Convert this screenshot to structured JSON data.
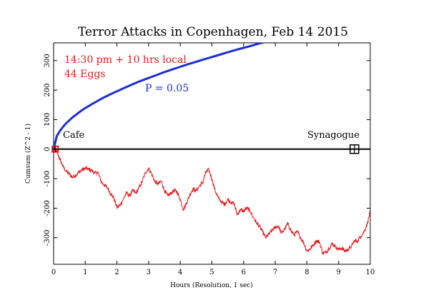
{
  "colors": {
    "cumsum": "#e31a1c",
    "probability": "#1c2fd6",
    "axis": "#000000",
    "marker": "#000000"
  },
  "chart_data": {
    "type": "line",
    "title": "Terror Attacks in Copenhagen, Feb 14 2015",
    "xlabel": "Hours (Resolution, 1 sec)",
    "ylabel": "Cumsum (Z^2 - 1)",
    "xlim": [
      0,
      10
    ],
    "ylim": [
      -390,
      360
    ],
    "x_ticks": [
      "0",
      "1",
      "2",
      "3",
      "4",
      "5",
      "6",
      "7",
      "8",
      "9",
      "10"
    ],
    "y_ticks": [
      "-300",
      "-200",
      "-100",
      "0",
      "100",
      "200",
      "300"
    ],
    "grid": false,
    "annotations": {
      "time_note": "14:30 pm + 10 hrs local",
      "eggs_note": "44 Eggs",
      "prob_label": "P = 0.05",
      "event1_label": "Cafe",
      "event2_label": "Synagogue"
    },
    "events": [
      {
        "name": "Cafe",
        "x": 0.05,
        "y": 0
      },
      {
        "name": "Synagogue",
        "x": 9.5,
        "y": 0
      }
    ],
    "series": [
      {
        "color": "#e31a1c",
        "x": [
          0,
          0.1,
          0.2,
          0.3,
          0.4,
          0.5,
          0.6,
          0.7,
          0.8,
          0.9,
          1.0,
          1.1,
          1.2,
          1.3,
          1.4,
          1.5,
          1.6,
          1.7,
          1.8,
          1.9,
          2.0,
          2.1,
          2.2,
          2.3,
          2.4,
          2.5,
          2.6,
          2.7,
          2.8,
          2.9,
          3.0,
          3.1,
          3.2,
          3.3,
          3.4,
          3.5,
          3.6,
          3.7,
          3.8,
          3.9,
          4.0,
          4.1,
          4.2,
          4.3,
          4.4,
          4.5,
          4.6,
          4.7,
          4.8,
          4.9,
          5.0,
          5.1,
          5.2,
          5.3,
          5.4,
          5.5,
          5.6,
          5.7,
          5.8,
          5.9,
          6.0,
          6.1,
          6.2,
          6.3,
          6.4,
          6.5,
          6.6,
          6.7,
          6.8,
          6.9,
          7.0,
          7.1,
          7.2,
          7.3,
          7.4,
          7.5,
          7.6,
          7.7,
          7.8,
          7.9,
          8.0,
          8.1,
          8.2,
          8.3,
          8.4,
          8.5,
          8.6,
          8.7,
          8.8,
          8.9,
          9.0,
          9.1,
          9.2,
          9.3,
          9.4,
          9.5,
          9.6,
          9.7,
          9.8,
          9.9,
          10.0
        ],
        "values": [
          0,
          -8,
          -35,
          -60,
          -75,
          -85,
          -95,
          -88,
          -78,
          -70,
          -65,
          -68,
          -72,
          -82,
          -78,
          -110,
          -122,
          -130,
          -150,
          -165,
          -198,
          -190,
          -170,
          -148,
          -158,
          -140,
          -150,
          -130,
          -110,
          -80,
          -65,
          -85,
          -110,
          -118,
          -108,
          -140,
          -158,
          -150,
          -140,
          -145,
          -170,
          -205,
          -182,
          -155,
          -135,
          -142,
          -125,
          -115,
          -80,
          -70,
          -100,
          -140,
          -165,
          -178,
          -188,
          -170,
          -180,
          -185,
          -222,
          -205,
          -210,
          -200,
          -208,
          -230,
          -248,
          -262,
          -280,
          -300,
          -288,
          -275,
          -265,
          -260,
          -285,
          -270,
          -252,
          -278,
          -290,
          -280,
          -300,
          -318,
          -345,
          -338,
          -325,
          -310,
          -315,
          -352,
          -350,
          -335,
          -320,
          -330,
          -340,
          -335,
          -345,
          -340,
          -330,
          -310,
          -312,
          -295,
          -280,
          -255,
          -210
        ]
      },
      {
        "color": "#1c2fd6",
        "x": [
          0,
          0.1,
          0.2,
          0.3,
          0.4,
          0.5,
          0.6,
          0.7,
          0.8,
          0.9,
          1.0,
          1.2,
          1.4,
          1.6,
          1.8,
          2.0,
          2.25,
          2.5,
          2.75,
          3.0,
          3.25,
          3.5,
          3.75,
          4.0,
          4.25,
          4.5,
          4.75,
          5.0,
          5.25,
          5.5,
          5.75,
          6.0,
          6.25,
          6.5,
          6.75,
          7.0
        ],
        "values": [
          0,
          44,
          62,
          76,
          88,
          98,
          108,
          116,
          124,
          132,
          139,
          152,
          164,
          176,
          186,
          196,
          208,
          220,
          231,
          241,
          251,
          261,
          270,
          279,
          288,
          296,
          304,
          312,
          320,
          328,
          336,
          343,
          350,
          358,
          365,
          372
        ]
      }
    ]
  }
}
